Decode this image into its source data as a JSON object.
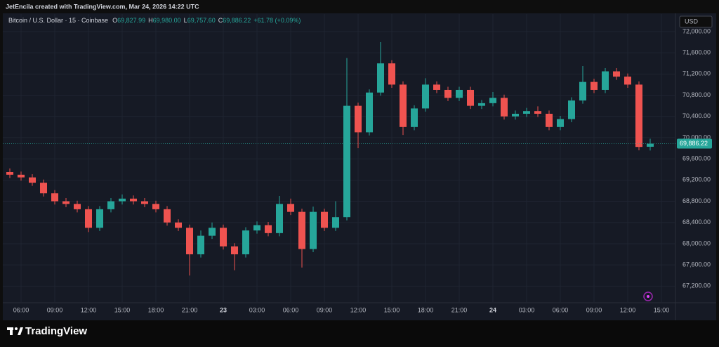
{
  "header": "JetEncila created with TradingView.com, Mar 24, 2026 14:22 UTC",
  "chart_data": {
    "type": "candlestick",
    "title": "Bitcoin / U.S. Dollar · 15 · Coinbase",
    "legend": [
      {
        "key": "O",
        "value": "69,827.99"
      },
      {
        "key": "H",
        "value": "69,980.00"
      },
      {
        "key": "L",
        "value": "69,757.60"
      },
      {
        "key": "C",
        "value": "69,886.22"
      }
    ],
    "change": "+61.78 (+0.09%)",
    "currency": "USD",
    "last_price_label": "69,886.22",
    "up_color": "#26a69a",
    "down_color": "#ef5350",
    "grid": true,
    "categories": [
      null,
      "06:00",
      null,
      null,
      "09:00",
      null,
      null,
      "12:00",
      null,
      null,
      "15:00",
      null,
      null,
      "18:00",
      null,
      null,
      "21:00",
      null,
      null,
      "23",
      null,
      null,
      "03:00",
      null,
      null,
      "06:00",
      null,
      null,
      "09:00",
      null,
      null,
      "12:00",
      null,
      null,
      "15:00",
      null,
      null,
      "18:00",
      null,
      null,
      "21:00",
      null,
      null,
      "24",
      null,
      null,
      "03:00",
      null,
      null,
      "06:00",
      null,
      null,
      "09:00",
      null,
      null,
      "12:00",
      null,
      null,
      "15:00"
    ],
    "open": [
      69350,
      69300,
      69250,
      69150,
      68950,
      68800,
      68750,
      68650,
      68300,
      68650,
      68800,
      68850,
      68800,
      68750,
      68650,
      68400,
      68300,
      67800,
      68150,
      68300,
      67950,
      67800,
      68250,
      68350,
      68200,
      68750,
      68600,
      67900,
      68600,
      68300,
      68500,
      70600,
      70100,
      70850,
      71400,
      71000,
      70200,
      70550,
      71000,
      70900,
      70750,
      70900,
      70600,
      70650,
      70750,
      70400,
      70450,
      70500,
      70450,
      70200,
      70350,
      70700,
      71050,
      70900,
      71250,
      71150,
      71000,
      69827.99,
      null
    ],
    "high": [
      69420,
      69360,
      69310,
      69210,
      69010,
      68860,
      68810,
      68710,
      68710,
      68860,
      68930,
      68910,
      68860,
      68810,
      68710,
      68460,
      68360,
      68250,
      68400,
      68360,
      68010,
      68310,
      68420,
      68410,
      68900,
      68850,
      68660,
      68700,
      68660,
      68800,
      71500,
      70660,
      70910,
      71800,
      71460,
      71060,
      70610,
      71120,
      71060,
      70960,
      70960,
      70960,
      70710,
      70860,
      70810,
      70510,
      70560,
      70590,
      70510,
      70410,
      70760,
      71350,
      71110,
      71310,
      71310,
      71210,
      71060,
      69980,
      null
    ],
    "low": [
      69240,
      69190,
      69090,
      68890,
      68740,
      68690,
      68590,
      68220,
      68240,
      68590,
      68740,
      68740,
      68690,
      68590,
      68340,
      68240,
      67400,
      67740,
      68090,
      67890,
      67500,
      67740,
      68190,
      68140,
      68140,
      68540,
      67550,
      67840,
      68240,
      68240,
      68440,
      69800,
      70040,
      70790,
      70940,
      70050,
      70140,
      70490,
      70840,
      70690,
      70690,
      70540,
      70540,
      70590,
      70340,
      70340,
      70390,
      70390,
      70140,
      70140,
      70290,
      70640,
      70840,
      70840,
      71090,
      70940,
      69760,
      69757.6,
      null
    ],
    "close": [
      69300,
      69250,
      69150,
      68950,
      68800,
      68750,
      68650,
      68300,
      68650,
      68800,
      68850,
      68800,
      68750,
      68650,
      68400,
      68300,
      67800,
      68150,
      68300,
      67950,
      67800,
      68250,
      68350,
      68200,
      68750,
      68600,
      67900,
      68600,
      68300,
      68500,
      70600,
      70100,
      70850,
      71400,
      71000,
      70200,
      70550,
      71000,
      70900,
      70750,
      70900,
      70600,
      70650,
      70750,
      70400,
      70450,
      70500,
      70450,
      70200,
      70350,
      70700,
      71050,
      70900,
      71250,
      71150,
      71000,
      69824.44,
      69886.22,
      null
    ],
    "ylim": [
      66900,
      72330
    ],
    "yticks": [
      {
        "value": 67200,
        "label": "67,200.00"
      },
      {
        "value": 67600,
        "label": "67,600.00"
      },
      {
        "value": 68000,
        "label": "68,000.00"
      },
      {
        "value": 68400,
        "label": "68,400.00"
      },
      {
        "value": 68800,
        "label": "68,800.00"
      },
      {
        "value": 69200,
        "label": "69,200.00"
      },
      {
        "value": 69600,
        "label": "69,600.00"
      },
      {
        "value": 70000,
        "label": "70,000.00"
      },
      {
        "value": 70400,
        "label": "70,400.00"
      },
      {
        "value": 70800,
        "label": "70,800.00"
      },
      {
        "value": 71200,
        "label": "71,200.00"
      },
      {
        "value": 71600,
        "label": "71,600.00"
      },
      {
        "value": 72000,
        "label": "72,000.00"
      }
    ]
  },
  "footer": {
    "brand": "TradingView"
  }
}
